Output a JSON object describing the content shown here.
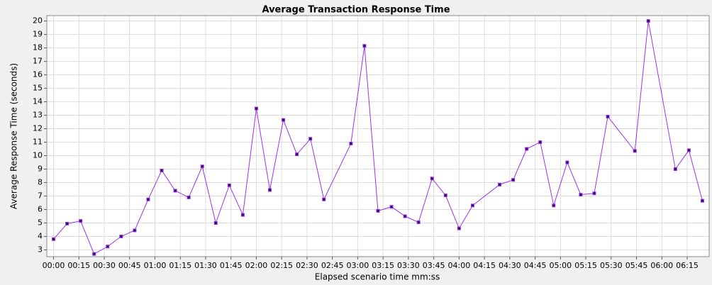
{
  "chart_data": {
    "type": "line",
    "title": "Average Transaction Response Time",
    "x_label": "Elapsed scenario time mm:ss",
    "y_label": "Average Response Time (seconds)",
    "series": [
      {
        "name": "Average Response Time",
        "color": "#9a32f0",
        "x": [
          0,
          8,
          16,
          24,
          32,
          40,
          48,
          56,
          64,
          72,
          80,
          88,
          96,
          104,
          112,
          120,
          128,
          136,
          144,
          152,
          160,
          176,
          184,
          192,
          200,
          208,
          216,
          224,
          232,
          240,
          248,
          264,
          272,
          280,
          288,
          296,
          304,
          312,
          320,
          328,
          344,
          352,
          368,
          376,
          384
        ],
        "values": [
          3.8,
          4.95,
          5.15,
          2.7,
          3.25,
          4.0,
          4.45,
          6.75,
          8.9,
          7.4,
          6.9,
          9.2,
          5.0,
          7.8,
          5.6,
          13.5,
          7.45,
          12.65,
          10.1,
          11.25,
          6.75,
          10.9,
          18.15,
          5.9,
          6.2,
          5.5,
          5.05,
          8.3,
          7.05,
          4.6,
          6.3,
          7.85,
          8.2,
          10.5,
          11.0,
          6.3,
          9.5,
          7.1,
          7.2,
          12.9,
          10.35,
          20.0,
          9.0,
          10.4,
          6.65
        ]
      }
    ],
    "xlim": [
      -4,
      388
    ],
    "xticks": [
      {
        "value": 0,
        "label": "00:00"
      },
      {
        "value": 15,
        "label": "00:15"
      },
      {
        "value": 30,
        "label": "00:30"
      },
      {
        "value": 45,
        "label": "00:45"
      },
      {
        "value": 60,
        "label": "01:00"
      },
      {
        "value": 75,
        "label": "01:15"
      },
      {
        "value": 90,
        "label": "01:30"
      },
      {
        "value": 105,
        "label": "01:45"
      },
      {
        "value": 120,
        "label": "02:00"
      },
      {
        "value": 135,
        "label": "02:15"
      },
      {
        "value": 150,
        "label": "02:30"
      },
      {
        "value": 165,
        "label": "02:45"
      },
      {
        "value": 180,
        "label": "03:00"
      },
      {
        "value": 195,
        "label": "03:15"
      },
      {
        "value": 210,
        "label": "03:30"
      },
      {
        "value": 225,
        "label": "03:45"
      },
      {
        "value": 240,
        "label": "04:00"
      },
      {
        "value": 255,
        "label": "04:15"
      },
      {
        "value": 270,
        "label": "04:30"
      },
      {
        "value": 285,
        "label": "04:45"
      },
      {
        "value": 300,
        "label": "05:00"
      },
      {
        "value": 315,
        "label": "05:15"
      },
      {
        "value": 330,
        "label": "05:30"
      },
      {
        "value": 345,
        "label": "05:45"
      },
      {
        "value": 360,
        "label": "06:00"
      },
      {
        "value": 375,
        "label": "06:15"
      }
    ],
    "ylim": [
      2.5,
      20.4
    ],
    "yticks": [
      3,
      4,
      5,
      6,
      7,
      8,
      9,
      10,
      11,
      12,
      13,
      14,
      15,
      16,
      17,
      18,
      19,
      20
    ],
    "grid": true
  }
}
